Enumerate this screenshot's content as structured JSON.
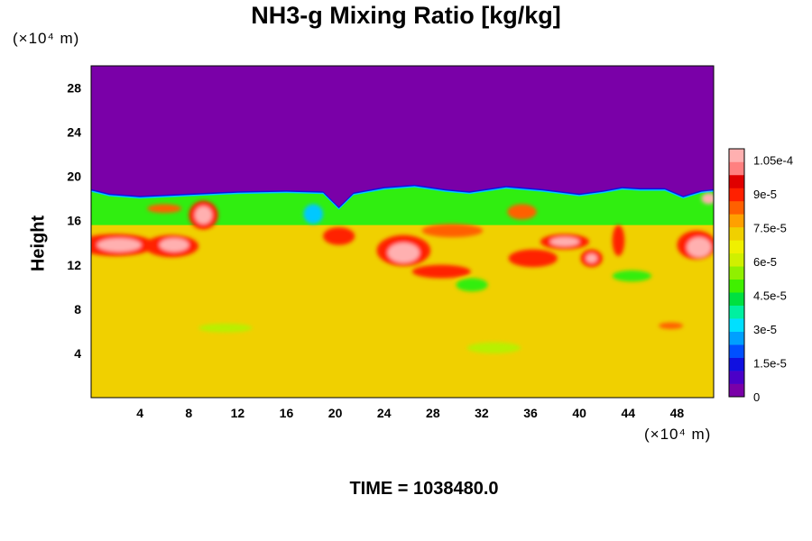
{
  "chart_data": {
    "type": "heatmap",
    "title": "NH3-g Mixing Ratio [kg/kg]",
    "ylabel": "Height",
    "x_unit": "(×10⁴ m)",
    "y_unit": "(×10⁴ m)",
    "xlim": [
      0,
      51
    ],
    "ylim": [
      0,
      30
    ],
    "x_ticks": [
      4,
      8,
      12,
      16,
      20,
      24,
      28,
      32,
      36,
      40,
      44,
      48
    ],
    "y_ticks": [
      4,
      8,
      12,
      16,
      20,
      24,
      28
    ],
    "colorbar": {
      "min": 0,
      "max": 0.00011,
      "tick_values": [
        0,
        1.5e-05,
        3e-05,
        4.5e-05,
        6e-05,
        7.5e-05,
        9e-05,
        0.000105
      ],
      "tick_labels": [
        "0",
        "1.5e-5",
        "3e-5",
        "4.5e-5",
        "6e-5",
        "7.5e-5",
        "9e-5",
        "1.05e-4"
      ],
      "colors": [
        "#7a00a8",
        "#4b00c8",
        "#1010e0",
        "#0050ff",
        "#00a0ff",
        "#00e0ff",
        "#00f0a0",
        "#00e040",
        "#40f000",
        "#90f000",
        "#d0f000",
        "#f0f000",
        "#f0d000",
        "#ffa000",
        "#ff6000",
        "#ff2000",
        "#e00000",
        "#ff8080",
        "#ffb0b0"
      ]
    },
    "field": {
      "background_value": 7.4e-05,
      "upper_value": 0,
      "cloud_top_height": [
        18.6,
        18.2,
        18.0,
        18.2,
        18.4,
        18.5,
        18.4,
        17.0,
        18.3,
        18.8,
        19.0,
        18.6,
        18.4,
        18.9,
        18.6,
        18.2,
        18.5,
        18.8,
        18.7,
        18.7,
        18.0,
        18.5,
        18.6
      ],
      "cloud_top_x": [
        0,
        1.5,
        4,
        8,
        12,
        16,
        19,
        20.3,
        21.5,
        24,
        26.5,
        29,
        31,
        34,
        37,
        40,
        42,
        43.5,
        45,
        47,
        48.5,
        50,
        51
      ]
    }
  },
  "time_label": "TIME = 1038480.0"
}
